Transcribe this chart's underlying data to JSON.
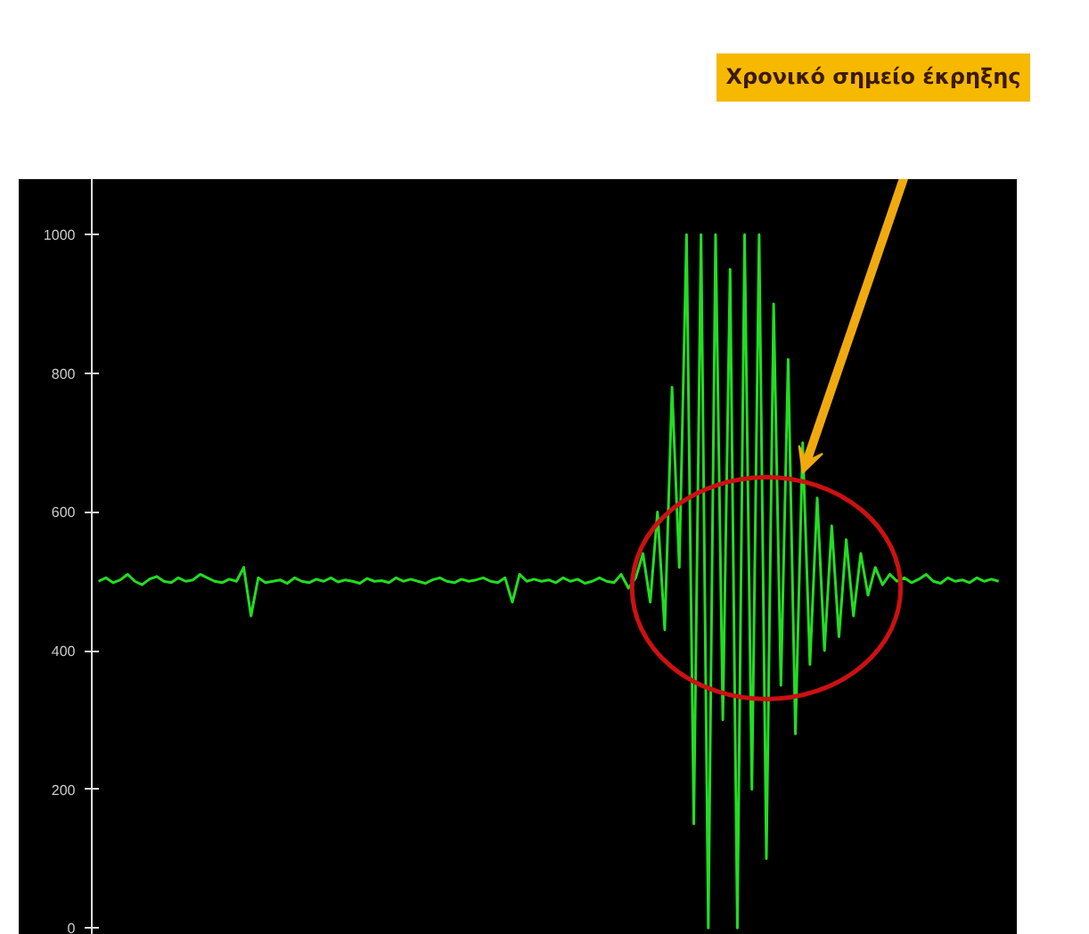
{
  "chart_data": {
    "type": "line",
    "categories": [
      null,
      null,
      null,
      null,
      null,
      null,
      null,
      null,
      null,
      null,
      null,
      null,
      null,
      null,
      null,
      null,
      null,
      null,
      null,
      null,
      null,
      null,
      null,
      null,
      null,
      null,
      null,
      null,
      null,
      null,
      null,
      null,
      null,
      null,
      null,
      null,
      null,
      null,
      null,
      null,
      null,
      null,
      null,
      null,
      null,
      null,
      null,
      null,
      null,
      null,
      null,
      null,
      null,
      null,
      null,
      null,
      null,
      null,
      null,
      null,
      null,
      null,
      null,
      null,
      null,
      null,
      null,
      null,
      null,
      null,
      null,
      null,
      null,
      null,
      null,
      null,
      null,
      null,
      null,
      null,
      null,
      null,
      null,
      null,
      null,
      null,
      null,
      null,
      null,
      null,
      null,
      null,
      null,
      null,
      null,
      null,
      null,
      null,
      null,
      null,
      null,
      null,
      null,
      null,
      null,
      null,
      null,
      null,
      null,
      null,
      null,
      null,
      null,
      null,
      null,
      null,
      null,
      null,
      null,
      null,
      null,
      null,
      null,
      null,
      null
    ],
    "series": [
      {
        "color": "#22dd22",
        "values": [
          500,
          505,
          498,
          502,
          510,
          500,
          495,
          503,
          507,
          500,
          498,
          505,
          500,
          502,
          510,
          505,
          500,
          498,
          503,
          500,
          520,
          450,
          505,
          498,
          500,
          502,
          497,
          505,
          500,
          498,
          503,
          500,
          505,
          499,
          502,
          500,
          497,
          504,
          500,
          501,
          498,
          505,
          500,
          503,
          500,
          497,
          502,
          505,
          500,
          498,
          503,
          500,
          502,
          505,
          500,
          498,
          505,
          470,
          510,
          500,
          503,
          500,
          502,
          498,
          505,
          500,
          503,
          497,
          500,
          505,
          500,
          498,
          510,
          490,
          505,
          540,
          470,
          600,
          430,
          780,
          520,
          1000,
          150,
          1000,
          0,
          1000,
          300,
          950,
          0,
          1000,
          200,
          1000,
          100,
          900,
          350,
          820,
          280,
          700,
          380,
          620,
          400,
          580,
          420,
          560,
          450,
          540,
          480,
          520,
          495,
          510,
          500,
          505,
          498,
          503,
          510,
          500,
          497,
          505,
          500,
          502,
          498,
          505,
          500,
          503,
          500
        ]
      }
    ],
    "ylim": [
      -10,
      1080
    ],
    "yticks": [
      0,
      200,
      400,
      600,
      800,
      1000
    ],
    "grid": false,
    "tick_labels": "y",
    "marker": "none",
    "line_style": "solid",
    "annotations": [
      "Χρονικό σημείο έκρηξης"
    ]
  }
}
